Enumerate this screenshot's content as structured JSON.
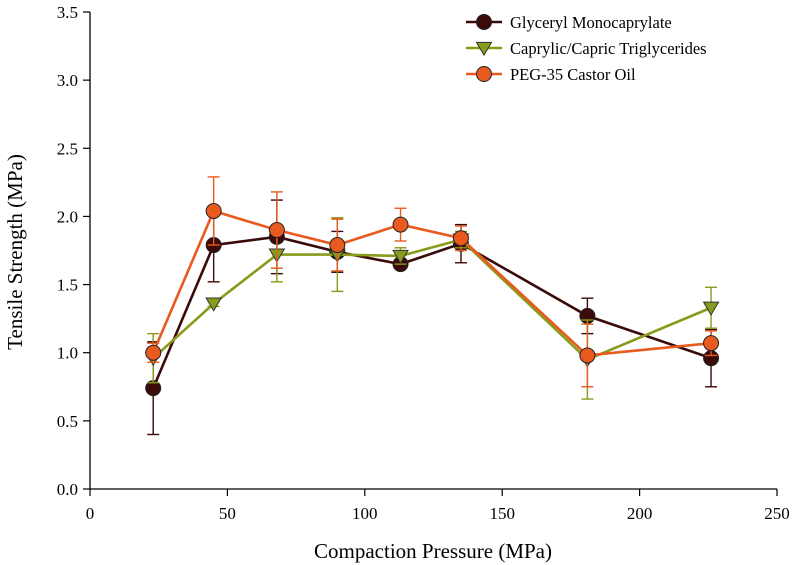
{
  "chart_data": {
    "type": "line",
    "xlabel": "Compaction Pressure (MPa)",
    "ylabel": "Tensile Strength (MPa)",
    "xlim": [
      0,
      250
    ],
    "ylim": [
      0,
      3.5
    ],
    "xticks": [
      0,
      50,
      100,
      150,
      200,
      250
    ],
    "yticks": [
      0.0,
      0.5,
      1.0,
      1.5,
      2.0,
      2.5,
      3.0,
      3.5
    ],
    "xtick_labels": [
      "0",
      "50",
      "100",
      "150",
      "200",
      "250"
    ],
    "ytick_labels": [
      "0.0",
      "0.5",
      "1.0",
      "1.5",
      "2.0",
      "2.5",
      "3.0",
      "3.5"
    ],
    "grid": false,
    "legend_position": "top-right",
    "series": [
      {
        "name": "Glyceryl Monocaprylate",
        "marker": "circle",
        "color": "#3b0a0a",
        "x": [
          23,
          45,
          68,
          90,
          113,
          135,
          181,
          226
        ],
        "y": [
          0.74,
          1.79,
          1.85,
          1.74,
          1.65,
          1.8,
          1.27,
          0.96
        ],
        "err": [
          0.34,
          0.27,
          0.27,
          0.15,
          0.03,
          0.14,
          0.13,
          0.21
        ]
      },
      {
        "name": "Caprylic/Capric Triglycerides",
        "marker": "triangle-down",
        "color": "#8a9a1b",
        "x": [
          23,
          45,
          68,
          90,
          113,
          135,
          181,
          226
        ],
        "y": [
          0.96,
          1.36,
          1.72,
          1.72,
          1.71,
          1.83,
          0.95,
          1.33
        ],
        "err": [
          0.18,
          0.02,
          0.2,
          0.27,
          0.06,
          0.06,
          0.29,
          0.15
        ]
      },
      {
        "name": "PEG-35 Castor Oil",
        "marker": "circle",
        "color": "#e85a1e",
        "x": [
          23,
          45,
          68,
          90,
          113,
          135,
          181,
          226
        ],
        "y": [
          1.0,
          2.04,
          1.9,
          1.79,
          1.94,
          1.84,
          0.98,
          1.07
        ],
        "err": [
          0.07,
          0.25,
          0.28,
          0.19,
          0.12,
          0.09,
          0.23,
          0.09
        ]
      }
    ]
  }
}
